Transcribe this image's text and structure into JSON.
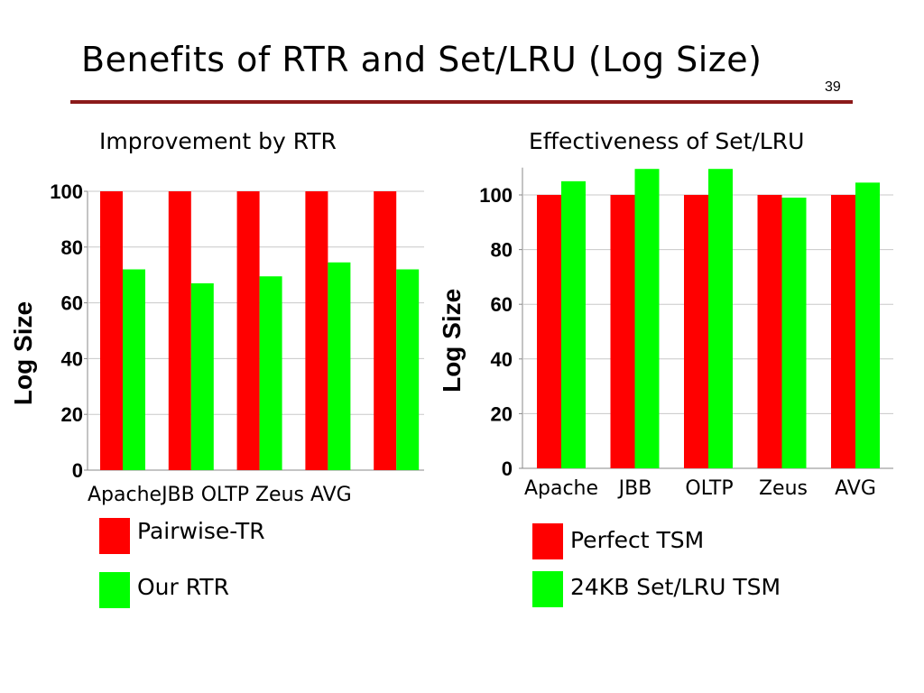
{
  "slide": {
    "title": "Benefits of RTR and Set/LRU (Log Size)",
    "page_number": "39"
  },
  "colors": {
    "series_red": "#ff0000",
    "series_green": "#00ff00",
    "title_rule": "#8b1a1a"
  },
  "chart_data": [
    {
      "type": "bar",
      "title": "Improvement by RTR",
      "ylabel": "Log Size",
      "xlabel": "",
      "categories": [
        "Apache",
        "JBB",
        "OLTP",
        "Zeus",
        "AVG"
      ],
      "category_labels_text": "ApacheJBB OLTP Zeus AVG",
      "series": [
        {
          "name": "Pairwise-TR",
          "color": "#ff0000",
          "values": [
            100,
            100,
            100,
            100,
            100
          ]
        },
        {
          "name": "Our RTR",
          "color": "#00ff00",
          "values": [
            72,
            67,
            69.5,
            74.5,
            72
          ]
        }
      ],
      "ylim": [
        0,
        100
      ],
      "yticks": [
        "0",
        "20",
        "40",
        "60",
        "80",
        "100"
      ],
      "grid": true,
      "legend": "bottom"
    },
    {
      "type": "bar",
      "title": "Effectiveness of Set/LRU",
      "ylabel": "Log Size",
      "xlabel": "",
      "categories": [
        "Apache",
        "JBB",
        "OLTP",
        "Zeus",
        "AVG"
      ],
      "series": [
        {
          "name": "Perfect TSM",
          "color": "#ff0000",
          "values": [
            100,
            100,
            100,
            100,
            100
          ]
        },
        {
          "name": "24KB Set/LRU TSM",
          "color": "#00ff00",
          "values": [
            105,
            109.5,
            109.5,
            99,
            104.5
          ]
        }
      ],
      "ylim": [
        0,
        110
      ],
      "yticks": [
        "0",
        "20",
        "40",
        "60",
        "80",
        "100"
      ],
      "grid": true,
      "legend": "bottom"
    }
  ]
}
